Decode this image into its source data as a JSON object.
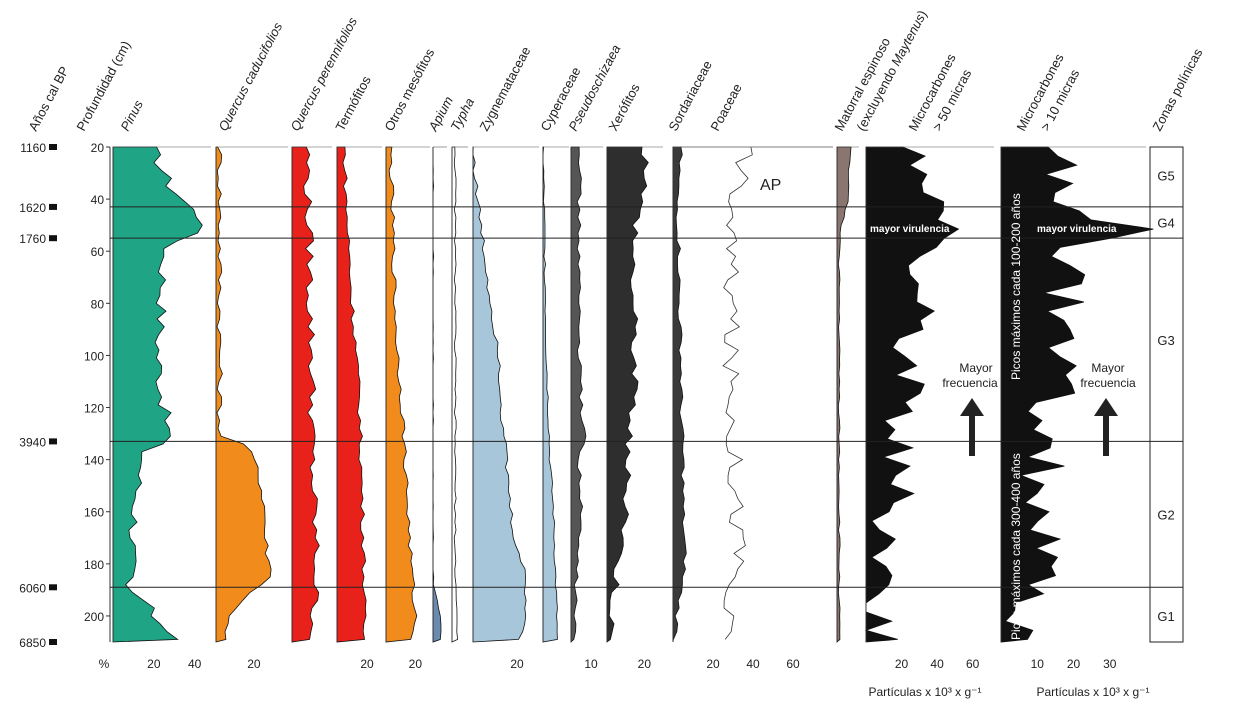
{
  "chart_data": {
    "type": "area",
    "age_axis": {
      "title": "Años cal BP",
      "labels": [
        {
          "age": "1160",
          "depth": 20
        },
        {
          "age": "1620",
          "depth": 43
        },
        {
          "age": "1760",
          "depth": 55
        },
        {
          "age": "3940",
          "depth": 133
        },
        {
          "age": "6060",
          "depth": 189
        },
        {
          "age": "6850",
          "depth": 210
        }
      ]
    },
    "depth_axis": {
      "title": "Profundidad (cm)",
      "range": [
        20,
        210
      ],
      "ticks": [
        "20",
        "40",
        "60",
        "80",
        "100",
        "120",
        "140",
        "160",
        "180",
        "200"
      ]
    },
    "zone_boundaries_depth": [
      43,
      55,
      133,
      189
    ],
    "zones": {
      "title": "Zonas polínicas",
      "items": [
        {
          "label": "G5",
          "depth": 31
        },
        {
          "label": "G4",
          "depth": 49
        },
        {
          "label": "G3",
          "depth": 94
        },
        {
          "label": "G2",
          "depth": 161
        },
        {
          "label": "G1",
          "depth": 200
        }
      ]
    },
    "percent_symbol": "%",
    "panels": [
      {
        "name": "Pinus",
        "italic": true,
        "color": "#1fa585",
        "xmax": 48,
        "ticks": [
          "20",
          "40"
        ],
        "profile": [
          [
            20,
            19
          ],
          [
            35,
            28
          ],
          [
            45,
            40
          ],
          [
            50,
            46
          ],
          [
            55,
            34
          ],
          [
            60,
            25
          ],
          [
            80,
            24
          ],
          [
            100,
            22
          ],
          [
            120,
            25
          ],
          [
            133,
            28
          ],
          [
            135,
            16
          ],
          [
            150,
            12
          ],
          [
            170,
            10
          ],
          [
            185,
            8
          ],
          [
            189,
            4
          ],
          [
            193,
            14
          ],
          [
            200,
            20
          ],
          [
            210,
            34
          ]
        ]
      },
      {
        "name": "Quercus caducifolios",
        "italic": true,
        "color": "#f18b1c",
        "xmax": 38,
        "ticks": [
          "20"
        ],
        "profile": [
          [
            20,
            2
          ],
          [
            60,
            2
          ],
          [
            100,
            2
          ],
          [
            132,
            2
          ],
          [
            134,
            15
          ],
          [
            140,
            20
          ],
          [
            150,
            24
          ],
          [
            160,
            26
          ],
          [
            170,
            26
          ],
          [
            180,
            28
          ],
          [
            185,
            30
          ],
          [
            189,
            22
          ],
          [
            195,
            12
          ],
          [
            200,
            8
          ],
          [
            210,
            4
          ]
        ]
      },
      {
        "name": "Quercus perennifolios",
        "italic": true,
        "color": "#e8221b",
        "xmax": 18,
        "ticks": [],
        "profile": [
          [
            20,
            7
          ],
          [
            40,
            7
          ],
          [
            60,
            8
          ],
          [
            80,
            8
          ],
          [
            100,
            9
          ],
          [
            120,
            9
          ],
          [
            140,
            9
          ],
          [
            160,
            10
          ],
          [
            180,
            11
          ],
          [
            200,
            10
          ],
          [
            210,
            9
          ]
        ]
      },
      {
        "name": "Termófitos",
        "italic": false,
        "color": "#e8221b",
        "xmax": 30,
        "ticks": [
          "20"
        ],
        "profile": [
          [
            20,
            5
          ],
          [
            40,
            6
          ],
          [
            60,
            8
          ],
          [
            80,
            10
          ],
          [
            100,
            13
          ],
          [
            120,
            15
          ],
          [
            140,
            16
          ],
          [
            160,
            17
          ],
          [
            180,
            18
          ],
          [
            200,
            18
          ],
          [
            210,
            18
          ]
        ]
      },
      {
        "name": "Otros mesófitos",
        "italic": false,
        "color": "#f18b1c",
        "xmax": 30,
        "ticks": [
          "20"
        ],
        "profile": [
          [
            20,
            3
          ],
          [
            40,
            4
          ],
          [
            60,
            5
          ],
          [
            80,
            6
          ],
          [
            100,
            8
          ],
          [
            120,
            11
          ],
          [
            140,
            13
          ],
          [
            160,
            15
          ],
          [
            180,
            17
          ],
          [
            200,
            20
          ],
          [
            210,
            18
          ]
        ]
      },
      {
        "name": "Apium",
        "italic": true,
        "color": "#6a8ab0",
        "xmax": 10,
        "ticks": [],
        "profile": [
          [
            20,
            0
          ],
          [
            180,
            0
          ],
          [
            189,
            0
          ],
          [
            195,
            4
          ],
          [
            205,
            6
          ],
          [
            210,
            5
          ]
        ]
      },
      {
        "name": "Typha",
        "italic": true,
        "color": "#ffffff",
        "xmax": 10,
        "ticks": [],
        "profile": [
          [
            20,
            2
          ],
          [
            100,
            2
          ],
          [
            140,
            2
          ],
          [
            180,
            2
          ],
          [
            200,
            3
          ],
          [
            210,
            3
          ]
        ]
      },
      {
        "name": "Zygnemataceae",
        "italic": false,
        "color": "#a7c6d9",
        "xmax": 30,
        "ticks": [
          "20"
        ],
        "profile": [
          [
            20,
            0
          ],
          [
            40,
            2
          ],
          [
            60,
            5
          ],
          [
            80,
            8
          ],
          [
            100,
            12
          ],
          [
            120,
            13
          ],
          [
            140,
            15
          ],
          [
            160,
            17
          ],
          [
            175,
            20
          ],
          [
            185,
            24
          ],
          [
            200,
            24
          ],
          [
            208,
            22
          ],
          [
            210,
            20
          ]
        ]
      },
      {
        "name": "Cyperaceae",
        "italic": false,
        "color": "#a7c6d9",
        "xmax": 15,
        "ticks": [],
        "profile": [
          [
            20,
            0
          ],
          [
            60,
            1
          ],
          [
            100,
            2
          ],
          [
            140,
            4
          ],
          [
            160,
            6
          ],
          [
            180,
            7
          ],
          [
            200,
            8
          ],
          [
            210,
            8
          ]
        ]
      },
      {
        "name": "Pseudoschizaea",
        "italic": true,
        "color": "#555555",
        "xmax": 16,
        "ticks": [
          "10"
        ],
        "profile": [
          [
            20,
            5
          ],
          [
            40,
            4
          ],
          [
            60,
            4
          ],
          [
            80,
            4
          ],
          [
            100,
            4
          ],
          [
            120,
            5
          ],
          [
            131,
            7
          ],
          [
            140,
            4
          ],
          [
            160,
            5
          ],
          [
            180,
            3
          ],
          [
            200,
            2
          ],
          [
            210,
            2
          ]
        ]
      },
      {
        "name": "Xerófitos",
        "italic": false,
        "color": "#2e2e2e",
        "xmax": 30,
        "ticks": [
          "20"
        ],
        "profile": [
          [
            20,
            20
          ],
          [
            30,
            22
          ],
          [
            40,
            18
          ],
          [
            60,
            14
          ],
          [
            80,
            14
          ],
          [
            100,
            15
          ],
          [
            120,
            14
          ],
          [
            140,
            10
          ],
          [
            160,
            11
          ],
          [
            180,
            6
          ],
          [
            200,
            3
          ],
          [
            210,
            1
          ]
        ]
      },
      {
        "name": "Sordariaceae",
        "italic": false,
        "color": "#3a3a3a",
        "xmax": 80,
        "ticks": [
          "20",
          "40",
          "60"
        ],
        "profile": [
          [
            20,
            4
          ],
          [
            40,
            2
          ],
          [
            60,
            3
          ],
          [
            80,
            3
          ],
          [
            100,
            4
          ],
          [
            120,
            4
          ],
          [
            140,
            5
          ],
          [
            160,
            5
          ],
          [
            180,
            6
          ],
          [
            200,
            2
          ],
          [
            210,
            1
          ]
        ]
      },
      {
        "name": "Poaceae",
        "italic": false,
        "color": "#ffffff",
        "xmax": 80,
        "ticks": [],
        "profile": [
          [
            20,
            20
          ],
          [
            30,
            18
          ],
          [
            40,
            14
          ],
          [
            60,
            12
          ],
          [
            80,
            12
          ],
          [
            100,
            10
          ],
          [
            120,
            10
          ],
          [
            140,
            10
          ],
          [
            160,
            10
          ],
          [
            180,
            10
          ],
          [
            190,
            4
          ],
          [
            200,
            3
          ],
          [
            210,
            2
          ]
        ]
      },
      {
        "name": "Matorral espinoso (excluyendo Maytenus)",
        "italic": false,
        "color": "#8a7570",
        "xmax": 10,
        "ticks": [],
        "profile": [
          [
            20,
            6
          ],
          [
            40,
            5
          ],
          [
            50,
            2
          ],
          [
            60,
            1
          ],
          [
            210,
            1
          ]
        ]
      },
      {
        "name": "Microcarbones > 50 micras",
        "italic": false,
        "color": "#111111",
        "xmax": 72,
        "ticks": [
          "20",
          "40",
          "60"
        ],
        "profile": [
          [
            20,
            28
          ],
          [
            40,
            30
          ],
          [
            52,
            55
          ],
          [
            60,
            32
          ],
          [
            80,
            30
          ],
          [
            100,
            26
          ],
          [
            120,
            22
          ],
          [
            140,
            18
          ],
          [
            160,
            16
          ],
          [
            180,
            12
          ],
          [
            200,
            8
          ],
          [
            210,
            6
          ]
        ]
      },
      {
        "name": "Microcarbones > 10 micras",
        "italic": false,
        "color": "#111111",
        "xmax": 40,
        "ticks": [
          "10",
          "20",
          "30"
        ],
        "profile": [
          [
            20,
            14
          ],
          [
            40,
            14
          ],
          [
            52,
            38
          ],
          [
            60,
            18
          ],
          [
            80,
            16
          ],
          [
            100,
            16
          ],
          [
            120,
            14
          ],
          [
            140,
            12
          ],
          [
            160,
            12
          ],
          [
            180,
            10
          ],
          [
            200,
            8
          ],
          [
            210,
            4
          ]
        ]
      }
    ],
    "header_labels": [
      "Pinus",
      "Quercus caducifolios",
      "Quercus perennifolios",
      "Termófitos",
      "Otros mesófitos",
      "Apium",
      "Typha",
      "Zygnemataceae",
      "Cyperaceae",
      "Pseudoschizaea",
      "Xerófitos",
      "Sordariaceae",
      "Poaceae",
      "Matorral espinoso",
      "(excluyendo Maytenus)",
      "Microcarbones",
      "> 50 micras",
      "Microcarbones",
      "> 10 micras"
    ],
    "annotations": {
      "ap_label": "AP",
      "virulencia": "mayor virulencia",
      "frecuencia_line1": "Mayor",
      "frecuencia_line2": "frecuencia",
      "picos_top": "Picos máximos cada 100-200 años",
      "picos_bottom": "Picos máximos cada 300-400 años"
    },
    "unit_label_particles": "Partículas x 10³ x g⁻¹"
  }
}
